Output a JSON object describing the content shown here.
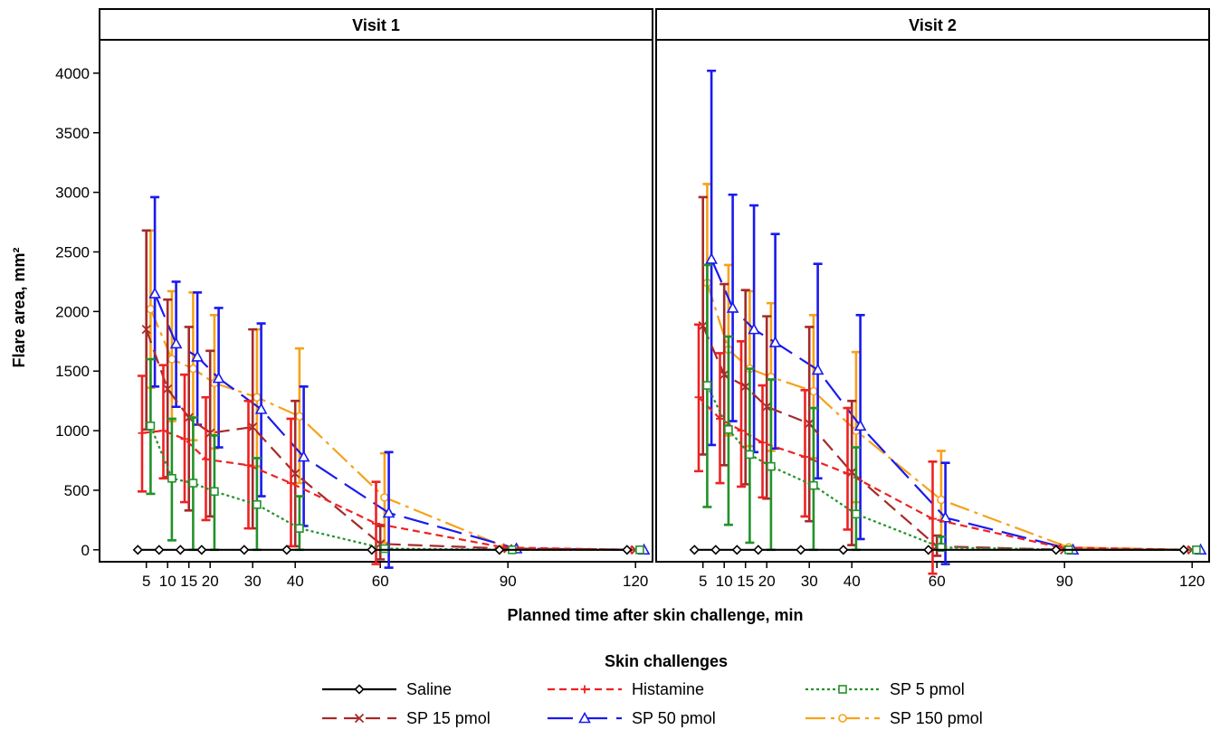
{
  "chart_data": {
    "type": "line",
    "panels": [
      "Visit 1",
      "Visit 2"
    ],
    "ylabel": "Flare area, mm²",
    "xlabel": "Planned time after skin challenge, min",
    "ylim": [
      -100,
      4280
    ],
    "xlim": [
      -6,
      124
    ],
    "yticks": [
      "0",
      "500",
      "1000",
      "1500",
      "2000",
      "2500",
      "3000",
      "3500",
      "4000"
    ],
    "xticks": [
      "5",
      "10",
      "15",
      "20",
      "30",
      "40",
      "60",
      "90",
      "120"
    ],
    "grid": false,
    "legend": {
      "title": "Skin challenges",
      "position": "bottom"
    },
    "x": [
      5,
      10,
      15,
      20,
      30,
      40,
      60,
      90,
      120
    ],
    "series": [
      {
        "name": "Saline",
        "color": "#000000",
        "dash": "",
        "marker": "diamond",
        "offset": -2,
        "visits": [
          {
            "values": [
              0,
              0,
              0,
              0,
              0,
              0,
              0,
              0,
              0
            ]
          },
          {
            "values": [
              0,
              0,
              0,
              0,
              0,
              0,
              0,
              0,
              0
            ]
          }
        ]
      },
      {
        "name": "Histamine",
        "color": "#ee2222",
        "dash": "8,5",
        "marker": "plus",
        "offset": -1,
        "visits": [
          {
            "values": [
              980,
              1000,
              930,
              760,
              710,
              560,
              220,
              20,
              0
            ],
            "low": [
              490,
              600,
              400,
              250,
              180,
              30,
              -120,
              0,
              0
            ],
            "high": [
              1460,
              1550,
              1470,
              1280,
              1250,
              1100,
              570,
              50,
              0
            ]
          },
          {
            "values": [
              1280,
              1100,
              1000,
              900,
              780,
              640,
              260,
              20,
              0
            ],
            "low": [
              660,
              560,
              530,
              440,
              280,
              170,
              -200,
              0,
              0
            ],
            "high": [
              1890,
              1650,
              1750,
              1380,
              1340,
              1190,
              740,
              50,
              0
            ]
          }
        ]
      },
      {
        "name": "SP 5 pmol",
        "color": "#22922a",
        "dash": "3,3",
        "marker": "square",
        "offset": 1,
        "visits": [
          {
            "values": [
              1040,
              600,
              560,
              490,
              380,
              180,
              10,
              0,
              0
            ],
            "low": [
              470,
              80,
              0,
              0,
              0,
              0,
              0,
              0,
              0
            ],
            "high": [
              1600,
              1100,
              1110,
              960,
              770,
              450,
              30,
              10,
              0
            ]
          },
          {
            "values": [
              1380,
              1010,
              800,
              700,
              540,
              300,
              20,
              0,
              0
            ],
            "low": [
              360,
              210,
              60,
              0,
              0,
              0,
              0,
              0,
              0
            ],
            "high": [
              2390,
              1790,
              1520,
              1430,
              1190,
              860,
              110,
              10,
              0
            ]
          }
        ]
      },
      {
        "name": "SP 15 pmol",
        "color": "#a52a2a",
        "dash": "16,8",
        "marker": "x",
        "offset": 0,
        "visits": [
          {
            "values": [
              1850,
              1350,
              1110,
              980,
              1030,
              640,
              50,
              10,
              0
            ],
            "low": [
              1010,
              610,
              330,
              280,
              180,
              30,
              -80,
              0,
              0
            ],
            "high": [
              2680,
              2100,
              1870,
              1670,
              1850,
              1250,
              200,
              30,
              0
            ]
          },
          {
            "values": [
              1880,
              1470,
              1370,
              1200,
              1060,
              650,
              30,
              0,
              0
            ],
            "low": [
              800,
              710,
              550,
              430,
              240,
              40,
              -50,
              0,
              0
            ],
            "high": [
              2960,
              2230,
              2180,
              1960,
              1870,
              1250,
              120,
              10,
              0
            ]
          }
        ]
      },
      {
        "name": "SP 50 pmol",
        "color": "#1a1aee",
        "dash": "28,10",
        "marker": "triangle",
        "offset": 2,
        "visits": [
          {
            "values": [
              2150,
              1730,
              1620,
              1440,
              1180,
              780,
              310,
              10,
              0
            ],
            "low": [
              1370,
              1200,
              1050,
              860,
              450,
              200,
              -150,
              0,
              0
            ],
            "high": [
              2960,
              2250,
              2160,
              2030,
              1900,
              1370,
              820,
              30,
              0
            ]
          },
          {
            "values": [
              2440,
              2030,
              1850,
              1740,
              1510,
              1040,
              270,
              0,
              0
            ],
            "low": [
              880,
              1080,
              820,
              850,
              600,
              90,
              -120,
              0,
              0
            ],
            "high": [
              4020,
              2980,
              2890,
              2650,
              2400,
              1970,
              730,
              20,
              0
            ]
          }
        ]
      },
      {
        "name": "SP 150 pmol",
        "color": "#f6a21a",
        "dash": "22,6,4,6",
        "marker": "circle",
        "offset": 1,
        "visits": [
          {
            "values": [
              2020,
              1600,
              1520,
              1400,
              1280,
              1120,
              440,
              0,
              0
            ],
            "low": [
              1360,
              1080,
              920,
              850,
              700,
              560,
              60,
              0,
              0
            ],
            "high": [
              2680,
              2170,
              2160,
              1970,
              1850,
              1690,
              810,
              20,
              0
            ]
          },
          {
            "values": [
              2240,
              1680,
              1520,
              1450,
              1330,
              1000,
              420,
              20,
              0
            ],
            "low": [
              1370,
              960,
              870,
              830,
              770,
              400,
              0,
              0,
              0
            ],
            "high": [
              3070,
              2390,
              2170,
              2070,
              1970,
              1660,
              830,
              40,
              0
            ]
          }
        ]
      }
    ]
  }
}
